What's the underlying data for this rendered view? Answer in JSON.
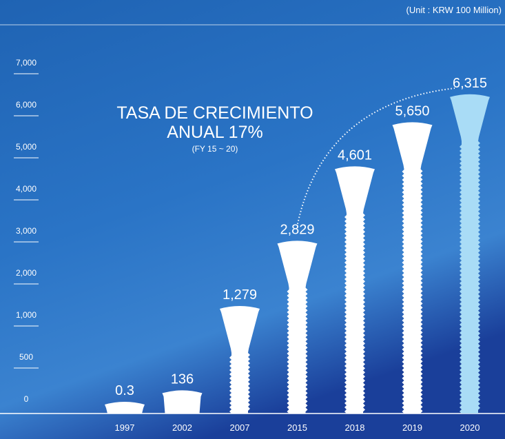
{
  "chart_data": {
    "type": "bar",
    "title_lines": [
      "TASA DE CRECIMIENTO",
      "ANUAL 17%"
    ],
    "subtitle": "(FY 15 ~ 20)",
    "unit_note": "(Unit : KRW 100 Million)",
    "categories": [
      "1997",
      "2002",
      "2007",
      "2015",
      "2018",
      "2019",
      "2020"
    ],
    "values": [
      0.3,
      136,
      1279,
      2829,
      4601,
      5650,
      6315
    ],
    "value_labels": [
      "0.3",
      "136",
      "1,279",
      "2,829",
      "4,601",
      "5,650",
      "6,315"
    ],
    "colors": [
      "#ffffff",
      "#ffffff",
      "#ffffff",
      "#ffffff",
      "#ffffff",
      "#ffffff",
      "#a9dcf6"
    ],
    "ylim": [
      0,
      7000
    ],
    "yticks": [
      0,
      500,
      {
        "value": 1000,
        "label": "1,000"
      },
      {
        "value": 2000,
        "label": "2,000"
      },
      {
        "value": 3000,
        "label": "3,000"
      },
      {
        "value": 4000,
        "label": "4,000"
      },
      {
        "value": 5000,
        "label": "5,000"
      },
      {
        "value": 6000,
        "label": "6,000"
      },
      {
        "value": 7000,
        "label": "7,000"
      }
    ]
  }
}
